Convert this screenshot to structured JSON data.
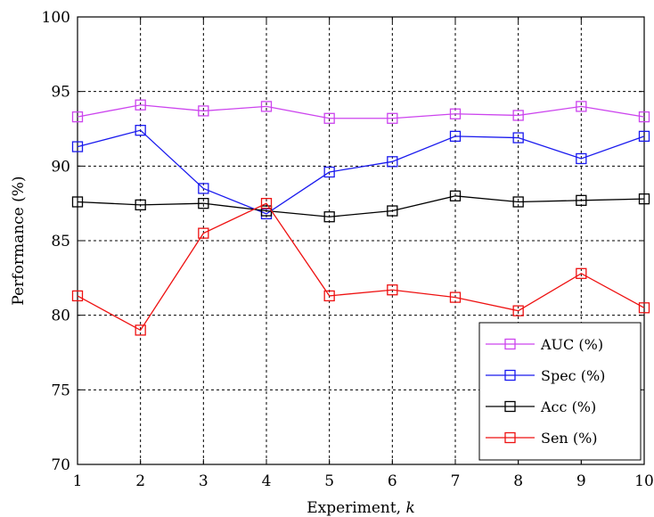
{
  "chart_data": {
    "type": "line",
    "title": "",
    "xlabel": "Experiment, ",
    "xlabel_var": "k",
    "ylabel": "Performance (%)",
    "x": [
      1,
      2,
      3,
      4,
      5,
      6,
      7,
      8,
      9,
      10
    ],
    "xticks": [
      "1",
      "2",
      "3",
      "4",
      "5",
      "6",
      "7",
      "8",
      "9",
      "10"
    ],
    "yticks": [
      "70",
      "75",
      "80",
      "85",
      "90",
      "95",
      "100"
    ],
    "xlim": [
      1,
      10
    ],
    "ylim": [
      70,
      100
    ],
    "grid": true,
    "legend_position": "bottom-right",
    "series": [
      {
        "name": "AUC (%)",
        "color": "#cc44ee",
        "marker": "square",
        "values": [
          93.3,
          94.1,
          93.7,
          94.0,
          93.2,
          93.2,
          93.5,
          93.4,
          94.0,
          93.3
        ]
      },
      {
        "name": "Spec (%)",
        "color": "#1a1aee",
        "marker": "square",
        "values": [
          91.3,
          92.4,
          88.5,
          86.8,
          89.6,
          90.3,
          92.0,
          91.9,
          90.5,
          92.0
        ]
      },
      {
        "name": "Acc (%)",
        "color": "#000000",
        "marker": "square",
        "values": [
          87.6,
          87.4,
          87.5,
          87.0,
          86.6,
          87.0,
          88.0,
          87.6,
          87.7,
          87.8
        ]
      },
      {
        "name": "Sen (%)",
        "color": "#ee1111",
        "marker": "square",
        "values": [
          81.3,
          79.0,
          85.5,
          87.5,
          81.3,
          81.7,
          81.2,
          80.3,
          82.8,
          80.5
        ]
      }
    ]
  }
}
